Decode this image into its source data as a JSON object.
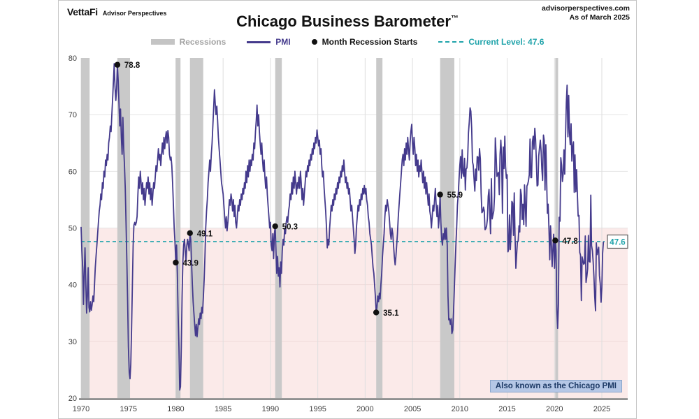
{
  "header": {
    "logo": "VettaFi",
    "logo_sub": "Advisor Perspectives",
    "source": "advisorperspectives.com",
    "as_of": "As of March 2025"
  },
  "title": {
    "main": "Chicago Business Barometer",
    "tm": "™"
  },
  "legend": {
    "recessions": "Recessions",
    "pmi": "PMI",
    "recession_starts": "Month Recession Starts",
    "current_level": "Current Level: 47.6"
  },
  "badge": "Also known as the Chicago PMI",
  "colors": {
    "pmi_line": "#443a8c",
    "recession_band": "#c9c9c9",
    "current_level": "#1fa3aa",
    "below_50_fill": "#fbeae9",
    "grid": "#e4e4e4",
    "grid_pink": "#eed9d9",
    "grid_v": "#dedede",
    "axis": "#7f7f7f",
    "dot": "#111111"
  },
  "chart_data": {
    "type": "line",
    "title": "Chicago Business Barometer (Chicago PMI)",
    "xlabel": "",
    "ylabel": "",
    "x_axis": {
      "ticks": [
        1970,
        1975,
        1980,
        1985,
        1990,
        1995,
        2000,
        2005,
        2010,
        2015,
        2020,
        2025
      ]
    },
    "y_axis": {
      "min": 20,
      "max": 80,
      "ticks": [
        20,
        30,
        40,
        50,
        60,
        70,
        80
      ]
    },
    "threshold": 50,
    "current_level": 47.6,
    "current_level_label": "47.6",
    "recessions": [
      [
        1970.0,
        1970.9
      ],
      [
        1973.83,
        1975.17
      ],
      [
        1980.0,
        1980.5
      ],
      [
        1981.5,
        1982.9
      ],
      [
        1990.5,
        1991.2
      ],
      [
        2001.17,
        2001.83
      ],
      [
        2007.92,
        2009.42
      ],
      [
        2020.08,
        2020.38
      ]
    ],
    "recession_start_points": [
      {
        "x": 1973.833,
        "value": 78.8,
        "label": "78.8"
      },
      {
        "x": 1980.0,
        "value": 43.9,
        "label": "43.9"
      },
      {
        "x": 1981.5,
        "value": 49.1,
        "label": "49.1"
      },
      {
        "x": 1990.5,
        "value": 50.3,
        "label": "50.3"
      },
      {
        "x": 2001.167,
        "value": 35.1,
        "label": "35.1"
      },
      {
        "x": 2007.917,
        "value": 55.9,
        "label": "55.9"
      },
      {
        "x": 2020.083,
        "value": 47.8,
        "label": "47.8"
      }
    ],
    "series": [
      {
        "name": "PMI",
        "start_year": 1970,
        "points_per_year": 12,
        "values": [
          50.2,
          46,
          43,
          36.5,
          42,
          46.5,
          40,
          35,
          38,
          43,
          36,
          35.2,
          37,
          35.5,
          36.5,
          38,
          37,
          40,
          43,
          45,
          47,
          49,
          51,
          53,
          54,
          56,
          55,
          58,
          57,
          60,
          59,
          62,
          61,
          63,
          62,
          65,
          66,
          68,
          67,
          70,
          73,
          76,
          79,
          75,
          72.5,
          74.5,
          78.8,
          76,
          72,
          68,
          71,
          66,
          63,
          69.5,
          64,
          61,
          57,
          51,
          44,
          37,
          29,
          24.5,
          23.4,
          26,
          32,
          40,
          47,
          50.5,
          51,
          50.5,
          51,
          52,
          56,
          59,
          57,
          60,
          58,
          56,
          58,
          55,
          57,
          54,
          56,
          58,
          57,
          59,
          56,
          58,
          55,
          57,
          54,
          56,
          58,
          57,
          59,
          61,
          60,
          62,
          64,
          62,
          63,
          61,
          63,
          65,
          63,
          66,
          64,
          66,
          67,
          65,
          67.2,
          66,
          63,
          62,
          62.5,
          61,
          58,
          54,
          50,
          47.5,
          43.9,
          47,
          42,
          35,
          29,
          21.4,
          22,
          29,
          38,
          44,
          47,
          48,
          46,
          44,
          47,
          48,
          47,
          46,
          49.1,
          48,
          44,
          40,
          37,
          35,
          33,
          31,
          33,
          30.8,
          32.5,
          34,
          33,
          35,
          34,
          36,
          35,
          38,
          41,
          45,
          50,
          53,
          55,
          58,
          60,
          62,
          60,
          63,
          65,
          68,
          71,
          74.4,
          72,
          70,
          71.5,
          69,
          66,
          64,
          62,
          60,
          58,
          57,
          56,
          54,
          52,
          50,
          52,
          49.5,
          51,
          53,
          55,
          54,
          56,
          55,
          53,
          55,
          52,
          54,
          51,
          50,
          52,
          54,
          53,
          55,
          54,
          56,
          55,
          57,
          56,
          58,
          57,
          60,
          58,
          61,
          59,
          62,
          60,
          62,
          61,
          63,
          62,
          65,
          64,
          67,
          69,
          71.7,
          68,
          70,
          67,
          65,
          63,
          65,
          62,
          60,
          62,
          59,
          57,
          59,
          56,
          54,
          52,
          50,
          51,
          47,
          46,
          49,
          44.6,
          49,
          50.3,
          46,
          42,
          45,
          41.5,
          43,
          39.6,
          44,
          42,
          46,
          48,
          47,
          50,
          49,
          51,
          52,
          51,
          53,
          54,
          56,
          55,
          58,
          56,
          59,
          57,
          60,
          58,
          56,
          58,
          57,
          59,
          57,
          60,
          58,
          55,
          57,
          54,
          56,
          58,
          60,
          59,
          61,
          60,
          62,
          61,
          63,
          62,
          64,
          63,
          65,
          64,
          66,
          65,
          67.3,
          66,
          64.5,
          65.5,
          63,
          64,
          61,
          59,
          60,
          57,
          55,
          53,
          50,
          46.5,
          48,
          47,
          50,
          52,
          54,
          53,
          55,
          54,
          56,
          55,
          57,
          56,
          58,
          57,
          59,
          58,
          60,
          59,
          61,
          60,
          62,
          60,
          58,
          59,
          57,
          58,
          56,
          57,
          55,
          53,
          54,
          52,
          50,
          48,
          45.5,
          47,
          50,
          52,
          54,
          53,
          55,
          54,
          56,
          55,
          57,
          56,
          57.5,
          56,
          57,
          55,
          54,
          52,
          51,
          49,
          48,
          47,
          45,
          43,
          42,
          40,
          38,
          35.1,
          36,
          38,
          37,
          38.5,
          37.5,
          40,
          42,
          45,
          47,
          49,
          52,
          54,
          53,
          55,
          54,
          53,
          51,
          49,
          48,
          50,
          49,
          47,
          45,
          43.5,
          45,
          47,
          49,
          52,
          54,
          56,
          58,
          60,
          62,
          63,
          61,
          64,
          62,
          65,
          63,
          66,
          64,
          62,
          65,
          67,
          68.3,
          65,
          63,
          66,
          64,
          61,
          63,
          60,
          62,
          59,
          61,
          60,
          62,
          60,
          58,
          60,
          57,
          59,
          56,
          58,
          56,
          54,
          56,
          53,
          52,
          50,
          52,
          54,
          53,
          55,
          57,
          54,
          52,
          54,
          50,
          52,
          55.9,
          51,
          48,
          47,
          49,
          48,
          50,
          48,
          50,
          47,
          38,
          33.8,
          34,
          33,
          34,
          31.4,
          32,
          35,
          39,
          43,
          47,
          50,
          54,
          56,
          58.7,
          61,
          62.6,
          58.8,
          63.8,
          59.7,
          59.1,
          62.3,
          56.7,
          60.4,
          60.6,
          62.5,
          66.8,
          68.8,
          71.2,
          70.6,
          67.6,
          61.7,
          61.1,
          58.8,
          56.5,
          60.4,
          58.4,
          62.6,
          62.5,
          60.2,
          64,
          62.2,
          56.2,
          52.7,
          52.9,
          53.7,
          53,
          49.7,
          49.9,
          50.4,
          51.6,
          55.6,
          56.8,
          52.4,
          49,
          58.7,
          51.6,
          52.3,
          53,
          55.7,
          65.9,
          63,
          59.1,
          59.6,
          59.8,
          55.9,
          63,
          65.5,
          62.6,
          52.6,
          64.3,
          60.5,
          66.2,
          60.8,
          58.8,
          59.4,
          45.8,
          46.3,
          52.3,
          46.2,
          49.4,
          54.7,
          54.4,
          48.7,
          56.2,
          48.7,
          42.9,
          45.3,
          47.6,
          47.7,
          50.4,
          49.3,
          56.8,
          55.8,
          51.5,
          54.2,
          50.6,
          57.6,
          53.9,
          50.3,
          57.4,
          57.7,
          58.3,
          59.4,
          65.7,
          58.9,
          58.9,
          65.2,
          66.2,
          63.9,
          67.6,
          65.7,
          61.9,
          57.4,
          57.6,
          62.7,
          64.1,
          65.5,
          63.6,
          60.4,
          58.4,
          66.4,
          65.4,
          56.7,
          64.7,
          58.7,
          52.6,
          54.2,
          49.7,
          44.4,
          50.4,
          47.1,
          43.2,
          46.3,
          48.9,
          42.9,
          47.8,
          46,
          35.4,
          32.3,
          36.6,
          51.9,
          51.2,
          62.4,
          61.1,
          58.2,
          59.5,
          63.8,
          59.5,
          66.3,
          72.1,
          75.2,
          66.1,
          73.4,
          66.8,
          64.7,
          68.4,
          61.8,
          64.3,
          65.2,
          56.3,
          62.9,
          56.4,
          60.3,
          56,
          52.1,
          52.2,
          45.7,
          45.2,
          37.2,
          44.9,
          44.3,
          43.6,
          43.8,
          48.6,
          40.4,
          41.5,
          42.8,
          48.7,
          44.1,
          44,
          55.8,
          46.9,
          46,
          44,
          41.4,
          37.9,
          35.4,
          47.4,
          45.3,
          46.1,
          46.6,
          41.6,
          40.2,
          36.9,
          39.5,
          45.5,
          47.6
        ]
      }
    ]
  }
}
